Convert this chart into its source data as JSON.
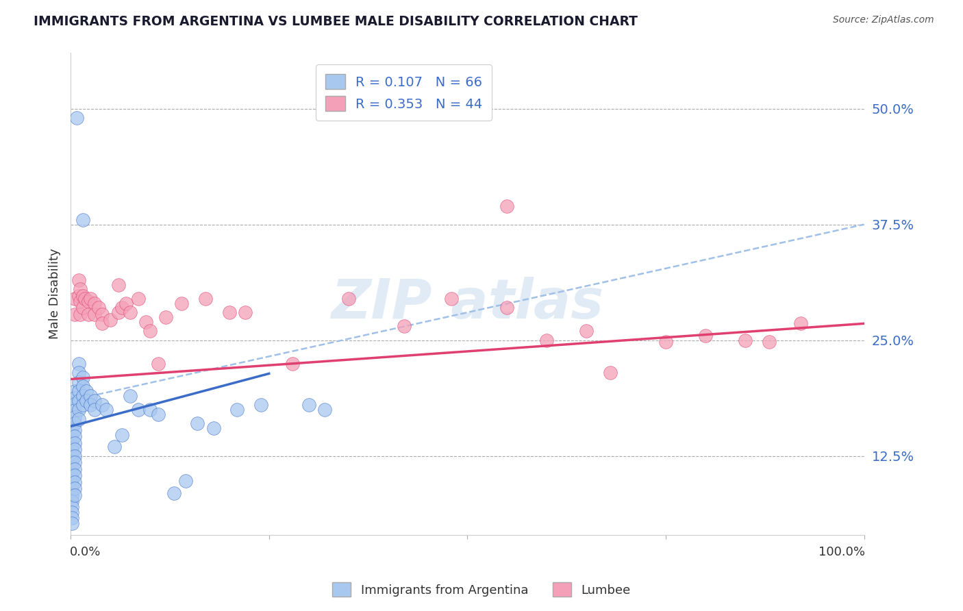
{
  "title": "IMMIGRANTS FROM ARGENTINA VS LUMBEE MALE DISABILITY CORRELATION CHART",
  "source": "Source: ZipAtlas.com",
  "ylabel": "Male Disability",
  "xlim": [
    0.0,
    1.0
  ],
  "ylim": [
    0.04,
    0.56
  ],
  "ytick_positions": [
    0.125,
    0.25,
    0.375,
    0.5
  ],
  "ytick_labels": [
    "12.5%",
    "25.0%",
    "37.5%",
    "50.0%"
  ],
  "blue_color": "#A8C8F0",
  "pink_color": "#F4A0B8",
  "blue_line_color": "#3B6CC8",
  "pink_line_color": "#E04070",
  "dash_line_color": "#A0C0E8",
  "watermark_color": "#C8DCF0",
  "legend_text_color": "#3B6CC8",
  "blue_scatter": [
    [
      0.008,
      0.49
    ],
    [
      0.015,
      0.38
    ],
    [
      0.002,
      0.155
    ],
    [
      0.002,
      0.148
    ],
    [
      0.002,
      0.142
    ],
    [
      0.002,
      0.136
    ],
    [
      0.002,
      0.13
    ],
    [
      0.002,
      0.124
    ],
    [
      0.002,
      0.118
    ],
    [
      0.002,
      0.112
    ],
    [
      0.002,
      0.106
    ],
    [
      0.002,
      0.1
    ],
    [
      0.002,
      0.094
    ],
    [
      0.002,
      0.088
    ],
    [
      0.002,
      0.082
    ],
    [
      0.002,
      0.076
    ],
    [
      0.002,
      0.07
    ],
    [
      0.002,
      0.064
    ],
    [
      0.002,
      0.058
    ],
    [
      0.002,
      0.052
    ],
    [
      0.005,
      0.195
    ],
    [
      0.005,
      0.188
    ],
    [
      0.005,
      0.181
    ],
    [
      0.005,
      0.174
    ],
    [
      0.005,
      0.167
    ],
    [
      0.005,
      0.16
    ],
    [
      0.005,
      0.153
    ],
    [
      0.005,
      0.146
    ],
    [
      0.005,
      0.139
    ],
    [
      0.005,
      0.132
    ],
    [
      0.005,
      0.125
    ],
    [
      0.005,
      0.118
    ],
    [
      0.005,
      0.111
    ],
    [
      0.005,
      0.104
    ],
    [
      0.005,
      0.097
    ],
    [
      0.005,
      0.09
    ],
    [
      0.005,
      0.083
    ],
    [
      0.01,
      0.225
    ],
    [
      0.01,
      0.215
    ],
    [
      0.01,
      0.205
    ],
    [
      0.01,
      0.195
    ],
    [
      0.01,
      0.185
    ],
    [
      0.01,
      0.175
    ],
    [
      0.01,
      0.165
    ],
    [
      0.015,
      0.21
    ],
    [
      0.015,
      0.2
    ],
    [
      0.015,
      0.19
    ],
    [
      0.015,
      0.18
    ],
    [
      0.02,
      0.195
    ],
    [
      0.02,
      0.185
    ],
    [
      0.025,
      0.19
    ],
    [
      0.025,
      0.18
    ],
    [
      0.03,
      0.185
    ],
    [
      0.03,
      0.175
    ],
    [
      0.04,
      0.18
    ],
    [
      0.045,
      0.175
    ],
    [
      0.055,
      0.135
    ],
    [
      0.065,
      0.148
    ],
    [
      0.075,
      0.19
    ],
    [
      0.085,
      0.175
    ],
    [
      0.1,
      0.175
    ],
    [
      0.11,
      0.17
    ],
    [
      0.13,
      0.085
    ],
    [
      0.145,
      0.098
    ],
    [
      0.16,
      0.16
    ],
    [
      0.18,
      0.155
    ],
    [
      0.21,
      0.175
    ],
    [
      0.24,
      0.18
    ],
    [
      0.3,
      0.18
    ],
    [
      0.32,
      0.175
    ]
  ],
  "pink_scatter": [
    [
      0.005,
      0.295
    ],
    [
      0.005,
      0.278
    ],
    [
      0.01,
      0.315
    ],
    [
      0.01,
      0.298
    ],
    [
      0.012,
      0.305
    ],
    [
      0.012,
      0.292
    ],
    [
      0.012,
      0.278
    ],
    [
      0.015,
      0.298
    ],
    [
      0.015,
      0.285
    ],
    [
      0.018,
      0.295
    ],
    [
      0.022,
      0.292
    ],
    [
      0.022,
      0.278
    ],
    [
      0.025,
      0.295
    ],
    [
      0.03,
      0.29
    ],
    [
      0.03,
      0.278
    ],
    [
      0.035,
      0.285
    ],
    [
      0.04,
      0.278
    ],
    [
      0.04,
      0.268
    ],
    [
      0.05,
      0.272
    ],
    [
      0.06,
      0.28
    ],
    [
      0.06,
      0.31
    ],
    [
      0.065,
      0.285
    ],
    [
      0.07,
      0.29
    ],
    [
      0.075,
      0.28
    ],
    [
      0.085,
      0.295
    ],
    [
      0.095,
      0.27
    ],
    [
      0.1,
      0.26
    ],
    [
      0.11,
      0.225
    ],
    [
      0.12,
      0.275
    ],
    [
      0.14,
      0.29
    ],
    [
      0.17,
      0.295
    ],
    [
      0.2,
      0.28
    ],
    [
      0.22,
      0.28
    ],
    [
      0.28,
      0.225
    ],
    [
      0.35,
      0.295
    ],
    [
      0.42,
      0.265
    ],
    [
      0.48,
      0.295
    ],
    [
      0.55,
      0.285
    ],
    [
      0.6,
      0.25
    ],
    [
      0.65,
      0.26
    ],
    [
      0.68,
      0.215
    ],
    [
      0.75,
      0.248
    ],
    [
      0.8,
      0.255
    ],
    [
      0.85,
      0.25
    ],
    [
      0.88,
      0.248
    ],
    [
      0.92,
      0.268
    ],
    [
      0.55,
      0.395
    ]
  ],
  "blue_trendline": [
    [
      0.0,
      0.157
    ],
    [
      0.25,
      0.214
    ]
  ],
  "pink_trendline": [
    [
      0.0,
      0.208
    ],
    [
      1.0,
      0.268
    ]
  ],
  "dash_trendline": [
    [
      0.0,
      0.185
    ],
    [
      1.0,
      0.375
    ]
  ]
}
